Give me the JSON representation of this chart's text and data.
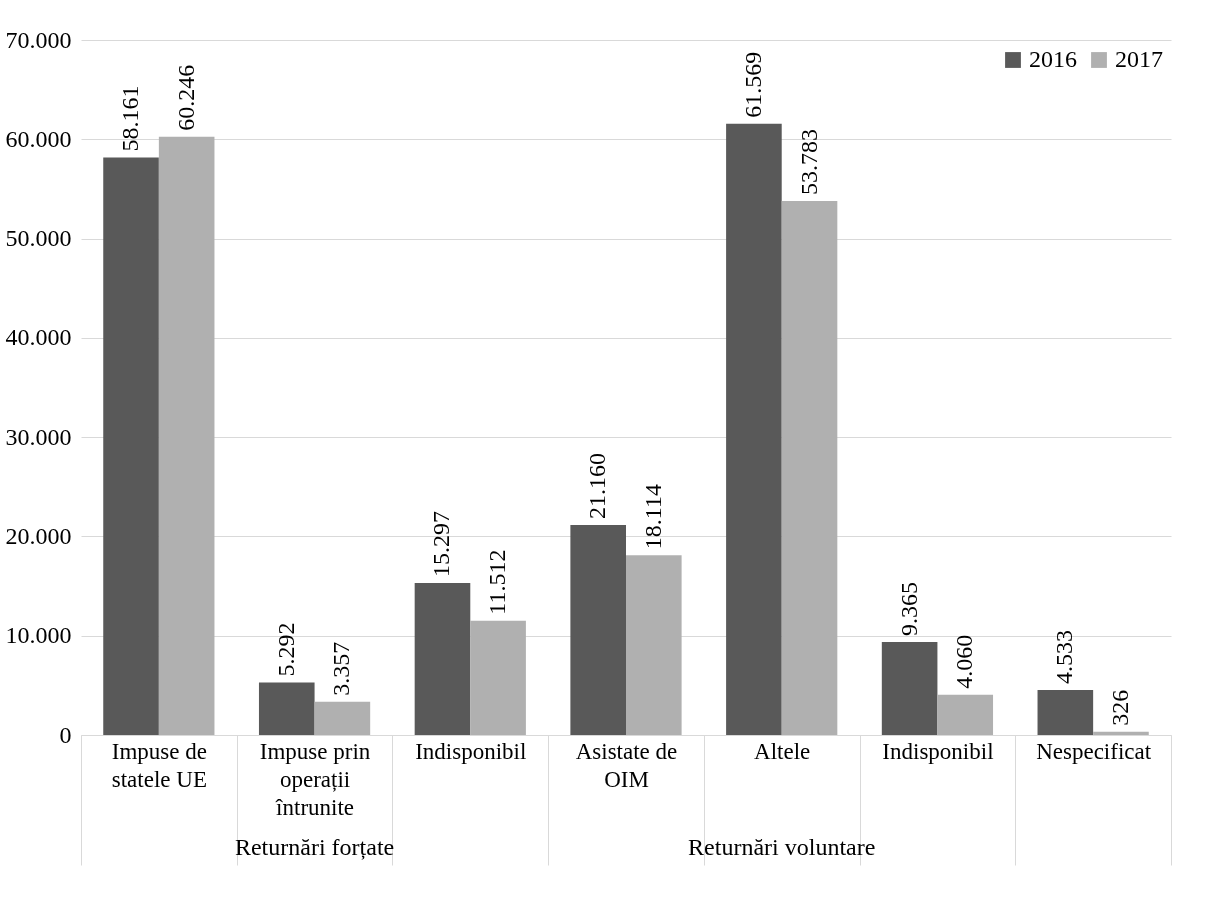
{
  "chart_data": {
    "type": "bar",
    "categories": [
      "Impuse de statele UE",
      "Impuse prin operații întrunite",
      "Indisponibil",
      "Asistate de OIM",
      "Altele",
      "Indisponibil",
      "Nespecificat"
    ],
    "series": [
      {
        "name": "2016",
        "color": "#595959",
        "values": [
          58161,
          5292,
          15297,
          21160,
          61569,
          9365,
          4533
        ],
        "value_labels": [
          "58.161",
          "5.292",
          "15.297",
          "21.160",
          "61.569",
          "9.365",
          "4.533"
        ]
      },
      {
        "name": "2017",
        "color": "#b0b0b0",
        "values": [
          60246,
          3357,
          11512,
          18114,
          53783,
          4060,
          326
        ],
        "value_labels": [
          "60.246",
          "3.357",
          "11.512",
          "18.114",
          "53.783",
          "4.060",
          "326"
        ]
      }
    ],
    "ylim": [
      0,
      70000
    ],
    "yticks": [
      0,
      {
        "value": 10000,
        "label": "10.000"
      },
      {
        "value": 20000,
        "label": "20.000"
      },
      {
        "value": 30000,
        "label": "30.000"
      },
      {
        "value": 40000,
        "label": "40.000"
      },
      {
        "value": 50000,
        "label": "50.000"
      },
      {
        "value": 60000,
        "label": "60.000"
      },
      {
        "value": 70000,
        "label": "70.000"
      }
    ],
    "grid": "y",
    "legend": "top right",
    "annotations": [
      "Returnări forțate",
      "Returnări voluntare"
    ]
  }
}
